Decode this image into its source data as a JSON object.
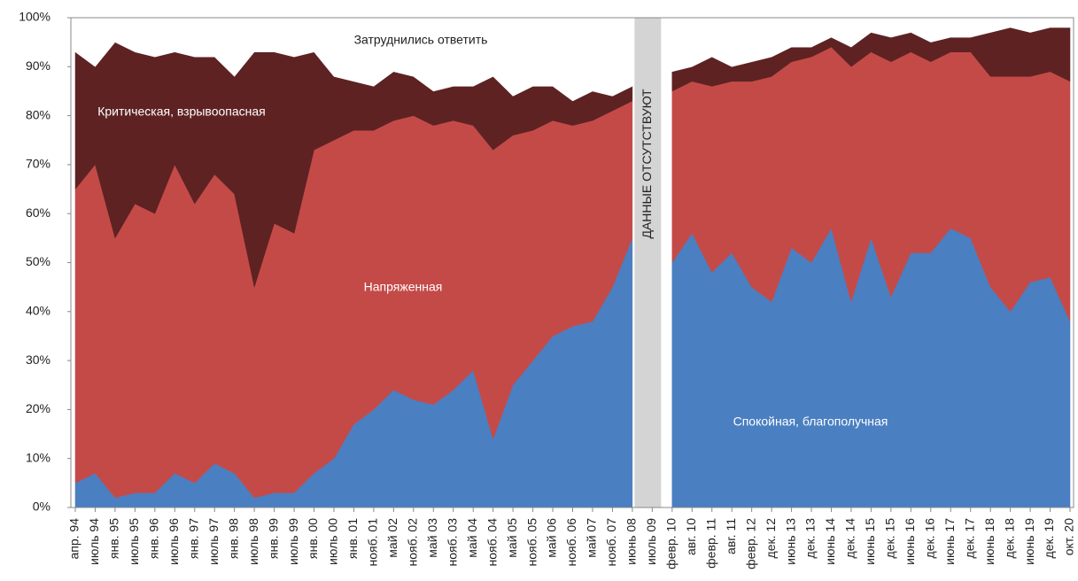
{
  "chart_data": {
    "type": "stacked_area",
    "categories": [
      "апр. 94",
      "июль 94",
      "янв. 95",
      "июль 95",
      "янв. 96",
      "июль 96",
      "янв. 97",
      "июль 97",
      "янв. 98",
      "июль 98",
      "янв. 99",
      "июль 99",
      "янв. 00",
      "июль 00",
      "янв. 01",
      "нояб. 01",
      "май 02",
      "нояб. 02",
      "май 03",
      "нояб. 03",
      "май 04",
      "нояб. 04",
      "май 05",
      "нояб. 05",
      "май 06",
      "нояб. 06",
      "май 07",
      "нояб. 07",
      "июнь 08",
      "июль 09",
      "февр. 10",
      "авг. 10",
      "февр. 11",
      "авг. 11",
      "февр. 12",
      "дек. 12",
      "июнь 13",
      "дек. 13",
      "июнь 14",
      "дек. 14",
      "июнь 15",
      "дек. 15",
      "июнь 16",
      "дек. 16",
      "июнь 17",
      "дек. 17",
      "июнь 18",
      "дек. 18",
      "июнь 19",
      "дек. 19",
      "окт. 20"
    ],
    "series": [
      {
        "name": "Спокойная, благополучная",
        "color": "#4a7fc1",
        "values": [
          5,
          7,
          2,
          3,
          3,
          7,
          5,
          9,
          7,
          2,
          3,
          3,
          7,
          10,
          17,
          20,
          24,
          22,
          21,
          24,
          28,
          14,
          25,
          30,
          35,
          37,
          38,
          45,
          55,
          null,
          50,
          56,
          48,
          52,
          45,
          42,
          53,
          50,
          57,
          42,
          55,
          43,
          52,
          52,
          57,
          55,
          45,
          40,
          46,
          47,
          38
        ]
      },
      {
        "name": "Напряженная",
        "color": "#c44a48",
        "values": [
          60,
          63,
          53,
          59,
          57,
          63,
          57,
          59,
          57,
          43,
          55,
          53,
          66,
          65,
          60,
          57,
          55,
          58,
          57,
          55,
          50,
          59,
          51,
          47,
          44,
          41,
          41,
          36,
          28,
          null,
          35,
          31,
          38,
          35,
          42,
          46,
          38,
          42,
          37,
          48,
          38,
          48,
          41,
          39,
          36,
          38,
          43,
          48,
          42,
          42,
          49
        ]
      },
      {
        "name": "Критическая, взрывоопасная",
        "color": "#5e2222",
        "values": [
          28,
          20,
          40,
          31,
          32,
          23,
          30,
          24,
          24,
          48,
          35,
          36,
          20,
          13,
          10,
          9,
          10,
          8,
          7,
          7,
          8,
          15,
          8,
          9,
          7,
          5,
          6,
          3,
          3,
          null,
          4,
          3,
          6,
          3,
          4,
          4,
          3,
          2,
          2,
          4,
          4,
          5,
          4,
          4,
          3,
          3,
          9,
          10,
          9,
          9,
          11
        ]
      },
      {
        "name": "Затруднились ответить",
        "color": "#ffffff",
        "values": [
          7,
          10,
          5,
          7,
          8,
          7,
          8,
          8,
          12,
          7,
          7,
          8,
          7,
          12,
          13,
          14,
          11,
          12,
          15,
          14,
          14,
          12,
          16,
          14,
          14,
          17,
          15,
          16,
          14,
          null,
          11,
          10,
          8,
          10,
          9,
          8,
          6,
          6,
          4,
          6,
          3,
          4,
          3,
          5,
          4,
          4,
          3,
          2,
          3,
          2,
          2
        ]
      }
    ],
    "annotations": [
      "ДАННЫЕ ОТСУТСТВУЮТ"
    ],
    "ylim": [
      0,
      100
    ],
    "yticks": [
      {
        "value": 0,
        "label": "0%"
      },
      {
        "value": 10,
        "label": "10%"
      },
      {
        "value": 20,
        "label": "20%"
      },
      {
        "value": 30,
        "label": "30%"
      },
      {
        "value": 40,
        "label": "40%"
      },
      {
        "value": 50,
        "label": "50%"
      },
      {
        "value": 60,
        "label": "60%"
      },
      {
        "value": 70,
        "label": "70%"
      },
      {
        "value": 80,
        "label": "80%"
      },
      {
        "value": 90,
        "label": "90%"
      },
      {
        "value": 100,
        "label": "100%"
      }
    ],
    "grid": false
  }
}
